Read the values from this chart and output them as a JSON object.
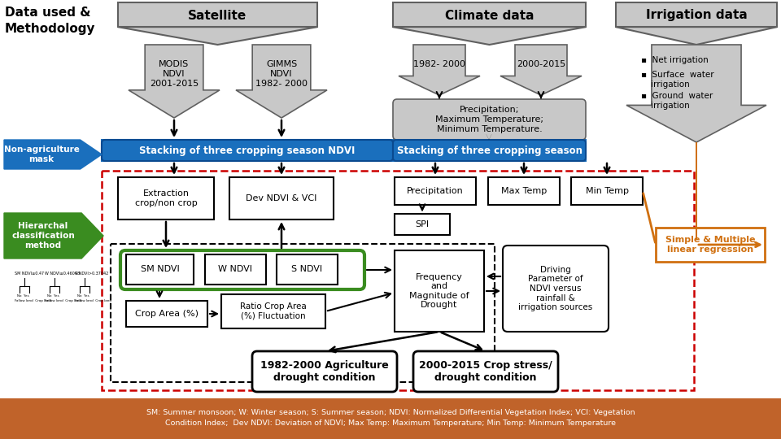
{
  "bg_color": "#ffffff",
  "footer_bg": "#c0632a",
  "footer_text": "SM: Summer monsoon; W: Winter season; S: Summer season; NDVI: Normalized Differential Vegetation Index; VCI: Vegetation\nCondition Index;  Dev NDVI: Deviation of NDVI; Max Temp: Maximum Temperature; Min Temp: Minimum Temperature",
  "title_text": "Data used &\nMethodology",
  "sat_header": "Satellite",
  "climate_header": "Climate data",
  "irrig_header": "Irrigation data",
  "modis_text": "MODIS\nNDVI\n2001-2015",
  "gimms_text": "GIMMS\nNDVI\n1982- 2000",
  "clim1_text": "1982- 2000",
  "clim2_text": "2000-2015",
  "precip_box_text": "Precipitation;\nMaximum Temperature;\nMinimum Temperature.",
  "nonag_text": "Non-agriculture\nmask",
  "stack_ndvi_text": "Stacking of three cropping season NDVI",
  "stack_clim_text": "Stacking of three cropping season",
  "hier_text": "Hierarchal\nclassification\nmethod",
  "extract_text": "Extraction\ncrop/non crop",
  "devndvi_text": "Dev NDVI & VCI",
  "precip_small_text": "Precipitation",
  "maxtemp_text": "Max Temp",
  "mintemp_text": "Min Temp",
  "spi_text": "SPI",
  "simple_text": "Simple & Multiple\nlinear regression",
  "smndvi_text": "SM NDVI",
  "wndvi_text": "W NDVI",
  "sndvi_text": "S NDVI",
  "croparea_text": "Crop Area (%)",
  "ratio_text": "Ratio Crop Area\n(%) Fluctuation",
  "freq_text": "Frequency\nand\nMagnitude of\nDrought",
  "driving_text": "Driving\nParameter of\nNDVI versus\nrainfall &\nirrigation sources",
  "out1_text": "1982-2000 Agriculture\ndrought condition",
  "out2_text": "2000-2015 Crop stress/\ndrought condition",
  "blue_color": "#1a6fbd",
  "green_color": "#3a8c20",
  "orange_color": "#d07010",
  "red_dashed_color": "#cc0000",
  "light_gray": "#c8c8c8",
  "mid_gray": "#a0a0a0",
  "dark_gray": "#606060",
  "tree_image_color": "#e8e8e8"
}
